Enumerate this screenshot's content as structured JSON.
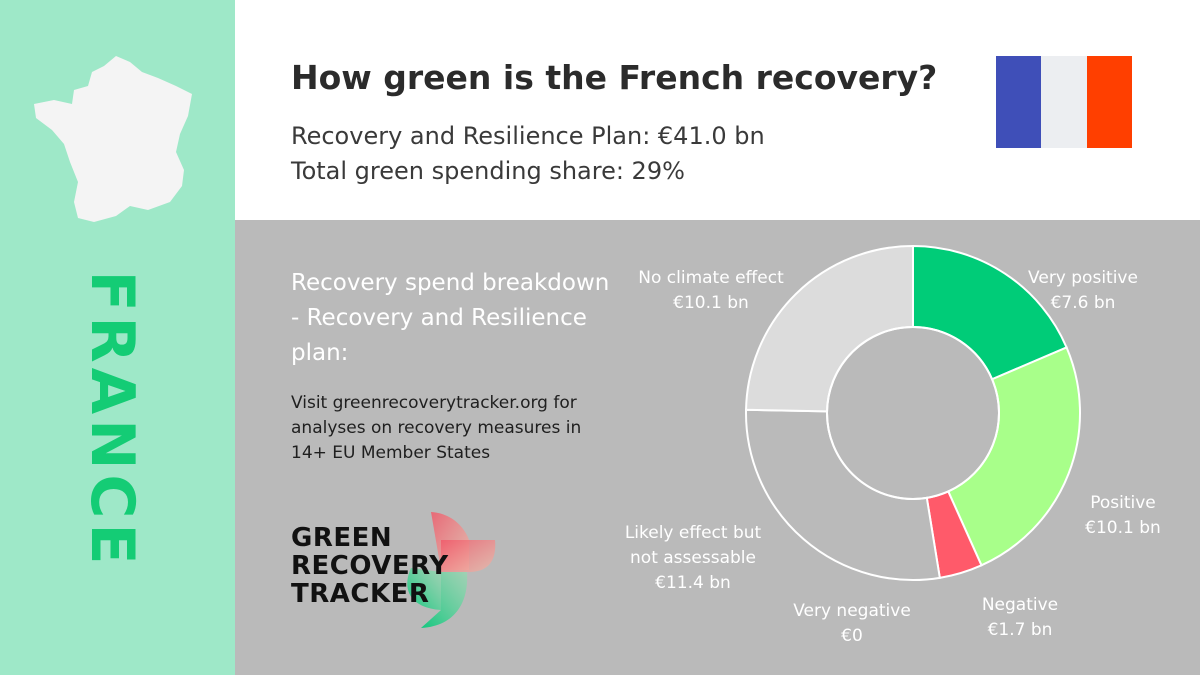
{
  "sidebar": {
    "country": "FRANCE",
    "colors": {
      "background": "#9ee8c8",
      "label": "#14cc75",
      "map": "#f4f4f4"
    }
  },
  "header": {
    "title": "How green is the French recovery?",
    "stats": [
      "Recovery and Resilience Plan: €41.0 bn",
      "Total green spending share: 29%"
    ],
    "flag_colors": [
      "#3f4fb8",
      "#eceef1",
      "#ff3f00"
    ]
  },
  "main": {
    "breakdown_heading": "Recovery spend breakdown - Recovery and Resilience plan:",
    "visit_text": "Visit greenrecoverytracker.org for analyses on recovery measures in 14+ EU Member States",
    "logo_lines": [
      "GREEN",
      "RECOVERY",
      "TRACKER"
    ]
  },
  "chart_data": {
    "type": "pie",
    "variant": "donut",
    "unit": "€ bn",
    "slices": [
      {
        "name": "Very positive",
        "value": 7.6,
        "value_label": "€7.6 bn",
        "color": "#00cc78"
      },
      {
        "name": "Positive",
        "value": 10.1,
        "value_label": "€10.1 bn",
        "color": "#a8ff8a"
      },
      {
        "name": "Negative",
        "value": 1.7,
        "value_label": "€1.7 bn",
        "color": "#ff5a6a"
      },
      {
        "name": "Very negative",
        "value": 0,
        "value_label": "€0",
        "color": "#c00020"
      },
      {
        "name": "Likely effect but not assessable",
        "value": 11.4,
        "value_label": "€11.4 bn",
        "color": "#bababa"
      },
      {
        "name": "No climate effect",
        "value": 10.1,
        "value_label": "€10.1 bn",
        "color": "#dcdcdc"
      }
    ]
  }
}
